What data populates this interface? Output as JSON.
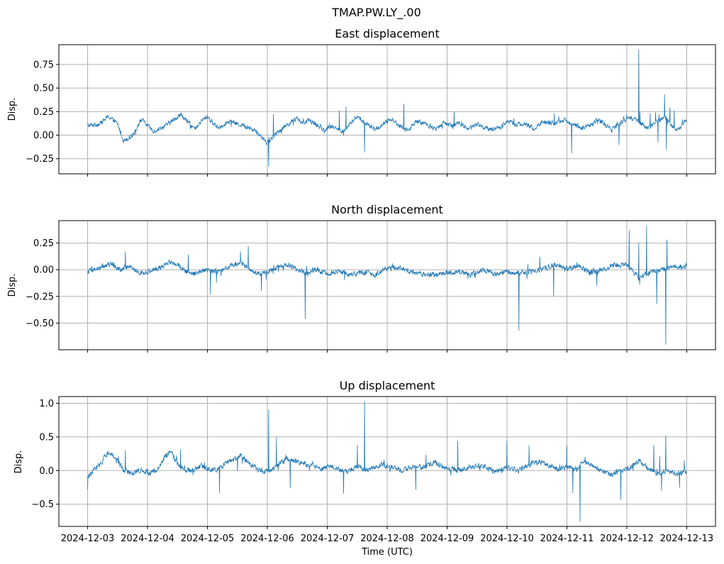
{
  "figure": {
    "suptitle": "TMAP.PW.LY_.00",
    "xlabel": "Time (UTC)"
  },
  "colors": {
    "series": "#1f77b4",
    "grid": "#b0b0b0",
    "axis": "#000000",
    "background": "#ffffff"
  },
  "chart_data": [
    {
      "type": "line",
      "title": "East displacement",
      "xlabel": "",
      "ylabel": "Disp.",
      "x_range_days": [
        -0.48,
        10.48
      ],
      "ylim": [
        -0.41,
        0.96
      ],
      "yticks": [
        -0.25,
        0.0,
        0.25,
        0.5,
        0.75
      ],
      "ytick_labels": [
        "−0.25",
        "0.00",
        "0.25",
        "0.50",
        "0.75"
      ],
      "baseline": [
        [
          0.0,
          0.1
        ],
        [
          0.2,
          0.12
        ],
        [
          0.35,
          0.2
        ],
        [
          0.5,
          0.12
        ],
        [
          0.6,
          -0.06
        ],
        [
          0.75,
          0.0
        ],
        [
          0.9,
          0.17
        ],
        [
          1.0,
          0.1
        ],
        [
          1.1,
          0.04
        ],
        [
          1.3,
          0.1
        ],
        [
          1.45,
          0.17
        ],
        [
          1.55,
          0.22
        ],
        [
          1.7,
          0.12
        ],
        [
          1.8,
          0.06
        ],
        [
          1.9,
          0.15
        ],
        [
          2.0,
          0.2
        ],
        [
          2.1,
          0.12
        ],
        [
          2.2,
          0.08
        ],
        [
          2.35,
          0.15
        ],
        [
          2.5,
          0.12
        ],
        [
          2.6,
          0.1
        ],
        [
          2.8,
          0.05
        ],
        [
          3.0,
          -0.08
        ],
        [
          3.2,
          0.05
        ],
        [
          3.35,
          0.12
        ],
        [
          3.5,
          0.18
        ],
        [
          3.6,
          0.12
        ],
        [
          3.7,
          0.16
        ],
        [
          3.85,
          0.1
        ],
        [
          3.95,
          0.05
        ],
        [
          4.1,
          0.1
        ],
        [
          4.25,
          0.03
        ],
        [
          4.4,
          0.13
        ],
        [
          4.5,
          0.2
        ],
        [
          4.65,
          0.12
        ],
        [
          4.8,
          0.06
        ],
        [
          4.95,
          0.12
        ],
        [
          5.05,
          0.18
        ],
        [
          5.2,
          0.1
        ],
        [
          5.35,
          0.05
        ],
        [
          5.5,
          0.15
        ],
        [
          5.65,
          0.12
        ],
        [
          5.8,
          0.06
        ],
        [
          5.95,
          0.14
        ],
        [
          6.05,
          0.1
        ],
        [
          6.2,
          0.13
        ],
        [
          6.35,
          0.07
        ],
        [
          6.5,
          0.12
        ],
        [
          6.7,
          0.06
        ],
        [
          6.9,
          0.08
        ],
        [
          7.0,
          0.16
        ],
        [
          7.15,
          0.11
        ],
        [
          7.3,
          0.12
        ],
        [
          7.45,
          0.07
        ],
        [
          7.6,
          0.14
        ],
        [
          7.8,
          0.13
        ],
        [
          7.95,
          0.16
        ],
        [
          8.1,
          0.12
        ],
        [
          8.25,
          0.08
        ],
        [
          8.4,
          0.1
        ],
        [
          8.5,
          0.17
        ],
        [
          8.6,
          0.13
        ],
        [
          8.75,
          0.06
        ],
        [
          8.9,
          0.14
        ],
        [
          9.05,
          0.18
        ],
        [
          9.15,
          0.16
        ],
        [
          9.25,
          0.12
        ],
        [
          9.35,
          0.07
        ],
        [
          9.5,
          0.16
        ],
        [
          9.65,
          0.18
        ],
        [
          9.75,
          0.1
        ],
        [
          9.85,
          0.05
        ],
        [
          9.95,
          0.14
        ],
        [
          10.0,
          0.15
        ]
      ],
      "spikes": [
        [
          3.02,
          -0.33
        ],
        [
          3.1,
          0.22
        ],
        [
          4.2,
          0.26
        ],
        [
          4.31,
          0.3
        ],
        [
          4.62,
          -0.18
        ],
        [
          4.27,
          0.0
        ],
        [
          5.28,
          0.33
        ],
        [
          6.12,
          0.25
        ],
        [
          7.0,
          0.14
        ],
        [
          8.08,
          -0.19
        ],
        [
          7.79,
          0.23
        ],
        [
          9.2,
          0.91
        ],
        [
          8.87,
          -0.1
        ],
        [
          9.0,
          0.22
        ],
        [
          9.22,
          0.24
        ],
        [
          9.39,
          0.23
        ],
        [
          9.48,
          0.24
        ],
        [
          9.52,
          -0.07
        ],
        [
          9.63,
          0.43
        ],
        [
          9.66,
          -0.15
        ],
        [
          9.72,
          0.29
        ],
        [
          9.79,
          0.26
        ]
      ],
      "noise": 0.022
    },
    {
      "type": "line",
      "title": "North displacement",
      "xlabel": "",
      "ylabel": "Disp.",
      "x_range_days": [
        -0.48,
        10.48
      ],
      "ylim": [
        -0.75,
        0.46
      ],
      "yticks": [
        -0.5,
        -0.25,
        0.0,
        0.25
      ],
      "ytick_labels": [
        "−0.50",
        "−0.25",
        "0.00",
        "0.25"
      ],
      "baseline": [
        [
          0.0,
          -0.02
        ],
        [
          0.2,
          0.02
        ],
        [
          0.4,
          0.06
        ],
        [
          0.55,
          0.0
        ],
        [
          0.7,
          0.04
        ],
        [
          0.85,
          -0.03
        ],
        [
          1.0,
          -0.02
        ],
        [
          1.2,
          0.02
        ],
        [
          1.35,
          0.07
        ],
        [
          1.5,
          0.05
        ],
        [
          1.65,
          -0.02
        ],
        [
          1.8,
          -0.04
        ],
        [
          2.0,
          0.0
        ],
        [
          2.2,
          -0.02
        ],
        [
          2.4,
          0.04
        ],
        [
          2.55,
          0.06
        ],
        [
          2.7,
          0.01
        ],
        [
          2.85,
          -0.04
        ],
        [
          3.0,
          -0.02
        ],
        [
          3.2,
          0.03
        ],
        [
          3.35,
          0.05
        ],
        [
          3.5,
          0.0
        ],
        [
          3.65,
          -0.03
        ],
        [
          3.8,
          0.01
        ],
        [
          4.0,
          -0.04
        ],
        [
          4.2,
          -0.01
        ],
        [
          4.4,
          -0.05
        ],
        [
          4.6,
          -0.02
        ],
        [
          4.8,
          -0.05
        ],
        [
          5.0,
          0.02
        ],
        [
          5.2,
          0.02
        ],
        [
          5.4,
          -0.02
        ],
        [
          5.6,
          -0.04
        ],
        [
          5.8,
          -0.05
        ],
        [
          6.0,
          -0.03
        ],
        [
          6.2,
          -0.02
        ],
        [
          6.4,
          -0.05
        ],
        [
          6.6,
          0.0
        ],
        [
          6.8,
          -0.04
        ],
        [
          7.0,
          -0.02
        ],
        [
          7.2,
          -0.03
        ],
        [
          7.4,
          -0.01
        ],
        [
          7.6,
          0.0
        ],
        [
          7.8,
          0.05
        ],
        [
          8.0,
          0.01
        ],
        [
          8.2,
          0.03
        ],
        [
          8.4,
          -0.03
        ],
        [
          8.6,
          0.0
        ],
        [
          8.8,
          0.04
        ],
        [
          9.0,
          0.05
        ],
        [
          9.2,
          -0.08
        ],
        [
          9.4,
          -0.02
        ],
        [
          9.6,
          0.0
        ],
        [
          9.8,
          0.03
        ],
        [
          10.0,
          0.03
        ]
      ],
      "spikes": [
        [
          0.63,
          0.17
        ],
        [
          1.68,
          0.14
        ],
        [
          2.05,
          -0.23
        ],
        [
          2.15,
          -0.12
        ],
        [
          2.55,
          0.17
        ],
        [
          2.68,
          0.22
        ],
        [
          2.9,
          -0.2
        ],
        [
          3.63,
          -0.46
        ],
        [
          4.28,
          0.0
        ],
        [
          6.2,
          0.0
        ],
        [
          7.2,
          -0.57
        ],
        [
          7.35,
          0.05
        ],
        [
          7.55,
          0.12
        ],
        [
          7.78,
          -0.25
        ],
        [
          8.5,
          -0.15
        ],
        [
          9.04,
          0.37
        ],
        [
          9.1,
          0.0
        ],
        [
          9.2,
          0.25
        ],
        [
          9.33,
          0.41
        ],
        [
          9.5,
          -0.32
        ],
        [
          9.52,
          0.0
        ],
        [
          9.65,
          -0.7
        ],
        [
          9.67,
          0.28
        ]
      ],
      "noise": 0.022
    },
    {
      "type": "line",
      "title": "Up displacement",
      "xlabel": "Time (UTC)",
      "ylabel": "Disp.",
      "x_range_days": [
        -0.48,
        10.48
      ],
      "ylim": [
        -0.83,
        1.1
      ],
      "yticks": [
        -0.5,
        0.0,
        0.5,
        1.0
      ],
      "ytick_labels": [
        "−0.5",
        "0.0",
        "0.5",
        "1.0"
      ],
      "xticks_days": [
        0,
        1,
        2,
        3,
        4,
        5,
        6,
        7,
        8,
        9,
        10
      ],
      "xtick_labels": [
        "2024-12-03",
        "2024-12-04",
        "2024-12-05",
        "2024-12-06",
        "2024-12-07",
        "2024-12-08",
        "2024-12-09",
        "2024-12-10",
        "2024-12-11",
        "2024-12-12",
        "2024-12-13"
      ],
      "baseline": [
        [
          0.0,
          -0.1
        ],
        [
          0.1,
          0.0
        ],
        [
          0.25,
          0.15
        ],
        [
          0.35,
          0.28
        ],
        [
          0.5,
          0.15
        ],
        [
          0.6,
          0.0
        ],
        [
          0.75,
          -0.05
        ],
        [
          0.9,
          0.02
        ],
        [
          1.05,
          -0.04
        ],
        [
          1.2,
          0.05
        ],
        [
          1.3,
          0.22
        ],
        [
          1.4,
          0.28
        ],
        [
          1.5,
          0.1
        ],
        [
          1.6,
          0.02
        ],
        [
          1.75,
          0.0
        ],
        [
          1.9,
          0.07
        ],
        [
          2.05,
          0.0
        ],
        [
          2.2,
          0.03
        ],
        [
          2.4,
          0.15
        ],
        [
          2.55,
          0.22
        ],
        [
          2.7,
          0.1
        ],
        [
          2.85,
          0.02
        ],
        [
          3.0,
          -0.02
        ],
        [
          3.15,
          0.05
        ],
        [
          3.3,
          0.18
        ],
        [
          3.45,
          0.15
        ],
        [
          3.6,
          0.1
        ],
        [
          3.75,
          0.08
        ],
        [
          3.9,
          0.02
        ],
        [
          4.05,
          0.08
        ],
        [
          4.2,
          0.02
        ],
        [
          4.35,
          -0.02
        ],
        [
          4.5,
          0.06
        ],
        [
          4.7,
          0.01
        ],
        [
          4.9,
          0.08
        ],
        [
          5.1,
          0.05
        ],
        [
          5.25,
          0.0
        ],
        [
          5.4,
          0.05
        ],
        [
          5.6,
          0.05
        ],
        [
          5.8,
          0.12
        ],
        [
          6.0,
          0.03
        ],
        [
          6.2,
          0.0
        ],
        [
          6.4,
          0.06
        ],
        [
          6.6,
          0.07
        ],
        [
          6.8,
          -0.02
        ],
        [
          7.0,
          0.05
        ],
        [
          7.2,
          0.0
        ],
        [
          7.4,
          0.1
        ],
        [
          7.55,
          0.13
        ],
        [
          7.7,
          0.08
        ],
        [
          7.85,
          0.02
        ],
        [
          8.0,
          0.05
        ],
        [
          8.15,
          0.02
        ],
        [
          8.3,
          0.15
        ],
        [
          8.45,
          0.05
        ],
        [
          8.6,
          -0.02
        ],
        [
          8.75,
          -0.05
        ],
        [
          8.9,
          0.0
        ],
        [
          9.05,
          0.04
        ],
        [
          9.2,
          0.15
        ],
        [
          9.35,
          0.05
        ],
        [
          9.5,
          -0.05
        ],
        [
          9.65,
          0.0
        ],
        [
          9.8,
          -0.05
        ],
        [
          9.95,
          -0.02
        ],
        [
          10.0,
          -0.05
        ]
      ],
      "spikes": [
        [
          0.0,
          -0.28
        ],
        [
          0.63,
          0.3
        ],
        [
          1.55,
          0.31
        ],
        [
          2.2,
          -0.33
        ],
        [
          2.5,
          0.0
        ],
        [
          3.02,
          0.9
        ],
        [
          3.15,
          0.5
        ],
        [
          3.18,
          0.0
        ],
        [
          3.38,
          -0.26
        ],
        [
          3.7,
          0.0
        ],
        [
          4.27,
          -0.34
        ],
        [
          4.5,
          0.38
        ],
        [
          4.62,
          1.03
        ],
        [
          5.48,
          -0.28
        ],
        [
          5.65,
          0.23
        ],
        [
          6.18,
          0.44
        ],
        [
          6.55,
          0.0
        ],
        [
          6.78,
          0.0
        ],
        [
          7.0,
          0.44
        ],
        [
          7.05,
          0.0
        ],
        [
          8.0,
          0.37
        ],
        [
          8.1,
          -0.33
        ],
        [
          8.22,
          -0.76
        ],
        [
          7.37,
          0.37
        ],
        [
          8.9,
          -0.43
        ],
        [
          9.45,
          0.38
        ],
        [
          9.55,
          0.21
        ],
        [
          9.58,
          -0.3
        ],
        [
          9.65,
          0.52
        ],
        [
          9.7,
          0.0
        ],
        [
          9.88,
          -0.25
        ],
        [
          9.96,
          0.15
        ]
      ],
      "noise": 0.035
    }
  ]
}
